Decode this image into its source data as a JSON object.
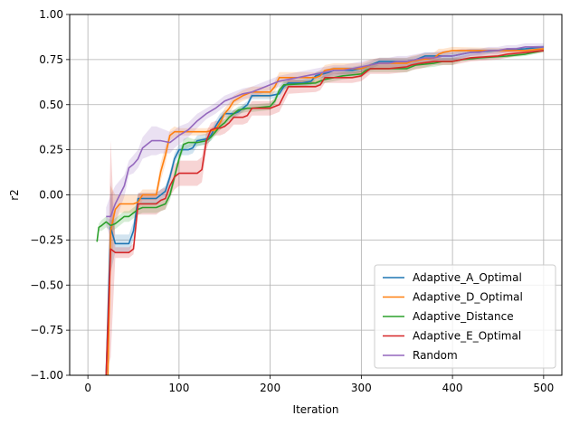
{
  "chart_data": {
    "type": "line",
    "title": "",
    "xlabel": "Iteration",
    "ylabel": "r2",
    "xlim": [
      -20,
      520
    ],
    "ylim": [
      -1.0,
      1.0
    ],
    "xticks": [
      0,
      100,
      200,
      300,
      400,
      500
    ],
    "xtick_labels": [
      "0",
      "100",
      "200",
      "300",
      "400",
      "500"
    ],
    "yticks": [
      -1.0,
      -0.75,
      -0.5,
      -0.25,
      0.0,
      0.25,
      0.5,
      0.75,
      1.0
    ],
    "ytick_labels": [
      "−1.00",
      "−0.75",
      "−0.50",
      "−0.25",
      "0.00",
      "0.25",
      "0.50",
      "0.75",
      "1.00"
    ],
    "grid": true,
    "legend_position": "bottom-right",
    "series": [
      {
        "name": "Adaptive_A_Optimal",
        "color": "#1f77b4",
        "x": [
          20,
          25,
          30,
          40,
          45,
          50,
          55,
          60,
          75,
          85,
          90,
          95,
          100,
          110,
          115,
          120,
          130,
          135,
          140,
          145,
          150,
          155,
          160,
          165,
          175,
          180,
          200,
          210,
          215,
          220,
          235,
          245,
          250,
          265,
          270,
          290,
          300,
          310,
          315,
          320,
          350,
          360,
          365,
          370,
          400,
          410,
          420,
          450,
          480,
          500
        ],
        "y": [
          -1.0,
          -0.18,
          -0.27,
          -0.27,
          -0.27,
          -0.2,
          -0.02,
          -0.02,
          -0.02,
          0.02,
          0.1,
          0.2,
          0.25,
          0.25,
          0.26,
          0.3,
          0.31,
          0.33,
          0.38,
          0.42,
          0.45,
          0.45,
          0.45,
          0.46,
          0.5,
          0.55,
          0.55,
          0.56,
          0.6,
          0.62,
          0.62,
          0.63,
          0.66,
          0.68,
          0.69,
          0.69,
          0.7,
          0.72,
          0.73,
          0.74,
          0.74,
          0.75,
          0.76,
          0.77,
          0.77,
          0.78,
          0.79,
          0.8,
          0.81,
          0.82
        ],
        "band": [
          0.03,
          0.25,
          0.05,
          0.05,
          0.05,
          0.05,
          0.03,
          0.03,
          0.03,
          0.03,
          0.03,
          0.03,
          0.03,
          0.03,
          0.03,
          0.03,
          0.03,
          0.03,
          0.03,
          0.03,
          0.02,
          0.02,
          0.02,
          0.02,
          0.02,
          0.02,
          0.02,
          0.02,
          0.02,
          0.02,
          0.02,
          0.02,
          0.02,
          0.02,
          0.02,
          0.02,
          0.02,
          0.02,
          0.02,
          0.02,
          0.02,
          0.02,
          0.02,
          0.02,
          0.02,
          0.02,
          0.02,
          0.01,
          0.01,
          0.01
        ]
      },
      {
        "name": "Adaptive_D_Optimal",
        "color": "#ff7f0e",
        "x": [
          22,
          25,
          30,
          35,
          40,
          45,
          50,
          55,
          60,
          65,
          75,
          80,
          85,
          90,
          95,
          100,
          105,
          110,
          115,
          120,
          125,
          130,
          140,
          145,
          150,
          155,
          160,
          170,
          175,
          180,
          195,
          200,
          205,
          210,
          250,
          255,
          260,
          270,
          300,
          305,
          310,
          320,
          350,
          355,
          365,
          380,
          385,
          390,
          400,
          480,
          500
        ],
        "y": [
          -1.0,
          -0.2,
          -0.08,
          -0.05,
          -0.05,
          -0.05,
          -0.05,
          -0.04,
          0.0,
          0.0,
          0.0,
          0.13,
          0.22,
          0.33,
          0.35,
          0.35,
          0.35,
          0.35,
          0.35,
          0.35,
          0.35,
          0.35,
          0.36,
          0.4,
          0.45,
          0.48,
          0.52,
          0.55,
          0.56,
          0.57,
          0.57,
          0.57,
          0.6,
          0.65,
          0.65,
          0.66,
          0.69,
          0.7,
          0.7,
          0.71,
          0.72,
          0.73,
          0.73,
          0.74,
          0.75,
          0.76,
          0.78,
          0.79,
          0.8,
          0.8,
          0.81
        ],
        "band": [
          0.03,
          0.25,
          0.08,
          0.05,
          0.05,
          0.05,
          0.05,
          0.04,
          0.03,
          0.03,
          0.03,
          0.05,
          0.05,
          0.03,
          0.03,
          0.02,
          0.02,
          0.02,
          0.02,
          0.02,
          0.02,
          0.02,
          0.02,
          0.03,
          0.03,
          0.03,
          0.03,
          0.03,
          0.03,
          0.03,
          0.03,
          0.03,
          0.03,
          0.03,
          0.03,
          0.03,
          0.03,
          0.03,
          0.03,
          0.03,
          0.03,
          0.03,
          0.03,
          0.03,
          0.03,
          0.03,
          0.03,
          0.02,
          0.02,
          0.01,
          0.01
        ]
      },
      {
        "name": "Adaptive_Distance",
        "color": "#2ca02c",
        "x": [
          10,
          12,
          15,
          20,
          25,
          30,
          35,
          40,
          45,
          50,
          55,
          60,
          65,
          75,
          80,
          85,
          90,
          95,
          100,
          105,
          110,
          115,
          120,
          130,
          135,
          140,
          145,
          150,
          155,
          160,
          165,
          175,
          180,
          200,
          205,
          210,
          215,
          250,
          255,
          260,
          280,
          300,
          305,
          310,
          350,
          360,
          380,
          390,
          400,
          410,
          430,
          460,
          480,
          500
        ],
        "y": [
          -0.26,
          -0.18,
          -0.17,
          -0.15,
          -0.17,
          -0.16,
          -0.14,
          -0.12,
          -0.12,
          -0.1,
          -0.08,
          -0.07,
          -0.07,
          -0.07,
          -0.06,
          -0.05,
          0.0,
          0.1,
          0.2,
          0.28,
          0.29,
          0.29,
          0.29,
          0.3,
          0.32,
          0.35,
          0.38,
          0.4,
          0.43,
          0.45,
          0.47,
          0.48,
          0.48,
          0.49,
          0.52,
          0.58,
          0.61,
          0.62,
          0.63,
          0.64,
          0.66,
          0.67,
          0.69,
          0.7,
          0.7,
          0.72,
          0.73,
          0.74,
          0.74,
          0.75,
          0.76,
          0.77,
          0.78,
          0.8
        ],
        "band": [
          0.0,
          0.02,
          0.03,
          0.03,
          0.03,
          0.03,
          0.03,
          0.03,
          0.03,
          0.03,
          0.03,
          0.03,
          0.03,
          0.03,
          0.03,
          0.03,
          0.03,
          0.03,
          0.03,
          0.03,
          0.03,
          0.02,
          0.02,
          0.02,
          0.02,
          0.02,
          0.02,
          0.02,
          0.02,
          0.02,
          0.02,
          0.02,
          0.02,
          0.02,
          0.02,
          0.02,
          0.02,
          0.02,
          0.02,
          0.02,
          0.02,
          0.02,
          0.02,
          0.02,
          0.02,
          0.02,
          0.02,
          0.02,
          0.02,
          0.01,
          0.01,
          0.01,
          0.01,
          0.01
        ]
      },
      {
        "name": "Adaptive_E_Optimal",
        "color": "#d62728",
        "x": [
          20,
          25,
          30,
          40,
          45,
          50,
          55,
          60,
          75,
          80,
          85,
          90,
          95,
          100,
          120,
          125,
          130,
          135,
          140,
          145,
          150,
          155,
          160,
          170,
          175,
          180,
          190,
          200,
          210,
          215,
          220,
          250,
          255,
          260,
          290,
          300,
          305,
          310,
          330,
          350,
          355,
          365,
          380,
          400,
          410,
          420,
          450,
          460,
          480,
          500
        ],
        "y": [
          -1.0,
          -0.3,
          -0.32,
          -0.32,
          -0.32,
          -0.3,
          -0.05,
          -0.05,
          -0.05,
          -0.03,
          -0.02,
          0.05,
          0.1,
          0.12,
          0.12,
          0.14,
          0.3,
          0.36,
          0.37,
          0.37,
          0.38,
          0.4,
          0.43,
          0.43,
          0.44,
          0.48,
          0.48,
          0.48,
          0.5,
          0.55,
          0.6,
          0.6,
          0.61,
          0.65,
          0.65,
          0.66,
          0.68,
          0.7,
          0.7,
          0.71,
          0.72,
          0.73,
          0.74,
          0.74,
          0.75,
          0.76,
          0.77,
          0.78,
          0.79,
          0.8
        ],
        "band": [
          0.03,
          0.6,
          0.03,
          0.03,
          0.03,
          0.03,
          0.06,
          0.06,
          0.06,
          0.06,
          0.06,
          0.06,
          0.07,
          0.07,
          0.07,
          0.07,
          0.05,
          0.04,
          0.04,
          0.04,
          0.04,
          0.04,
          0.04,
          0.04,
          0.04,
          0.04,
          0.04,
          0.04,
          0.04,
          0.04,
          0.04,
          0.03,
          0.03,
          0.03,
          0.03,
          0.03,
          0.03,
          0.03,
          0.03,
          0.03,
          0.03,
          0.03,
          0.02,
          0.02,
          0.02,
          0.02,
          0.02,
          0.02,
          0.01,
          0.01
        ]
      },
      {
        "name": "Random",
        "color": "#9467bd",
        "x": [
          20,
          25,
          30,
          35,
          40,
          45,
          50,
          55,
          60,
          65,
          70,
          75,
          80,
          90,
          95,
          100,
          110,
          120,
          130,
          140,
          150,
          160,
          170,
          180,
          190,
          200,
          210,
          220,
          230,
          240,
          250,
          260,
          270,
          280,
          290,
          300,
          310,
          320,
          330,
          340,
          350,
          360,
          370,
          380,
          390,
          400,
          410,
          420,
          430,
          440,
          450,
          460,
          470,
          480,
          490,
          500
        ],
        "y": [
          -0.12,
          -0.12,
          -0.05,
          0.0,
          0.05,
          0.15,
          0.17,
          0.2,
          0.26,
          0.28,
          0.3,
          0.3,
          0.3,
          0.29,
          0.31,
          0.33,
          0.36,
          0.41,
          0.45,
          0.48,
          0.52,
          0.54,
          0.56,
          0.57,
          0.59,
          0.61,
          0.63,
          0.64,
          0.65,
          0.66,
          0.67,
          0.68,
          0.69,
          0.69,
          0.7,
          0.71,
          0.72,
          0.73,
          0.73,
          0.74,
          0.74,
          0.75,
          0.76,
          0.76,
          0.77,
          0.77,
          0.78,
          0.79,
          0.79,
          0.8,
          0.8,
          0.81,
          0.81,
          0.82,
          0.82,
          0.82
        ],
        "band": [
          0.05,
          0.12,
          0.1,
          0.08,
          0.06,
          0.04,
          0.05,
          0.05,
          0.06,
          0.07,
          0.08,
          0.08,
          0.07,
          0.06,
          0.05,
          0.05,
          0.04,
          0.04,
          0.03,
          0.03,
          0.03,
          0.03,
          0.03,
          0.03,
          0.03,
          0.03,
          0.03,
          0.03,
          0.03,
          0.03,
          0.03,
          0.03,
          0.03,
          0.03,
          0.03,
          0.03,
          0.03,
          0.03,
          0.03,
          0.03,
          0.03,
          0.03,
          0.03,
          0.03,
          0.03,
          0.03,
          0.03,
          0.02,
          0.02,
          0.02,
          0.02,
          0.02,
          0.02,
          0.02,
          0.02,
          0.02
        ]
      }
    ]
  }
}
